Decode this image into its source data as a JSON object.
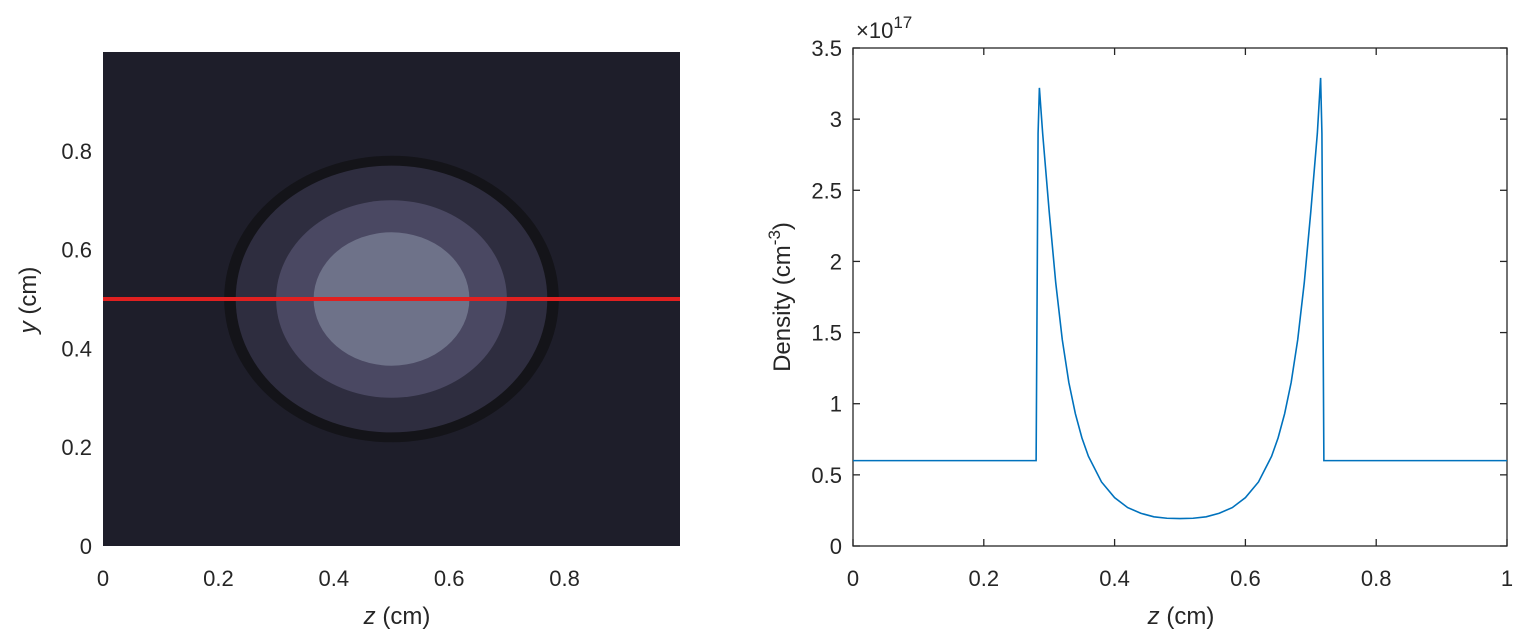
{
  "chart_data": [
    {
      "type": "heatmap",
      "xlabel": {
        "var": "z",
        "unit": " (cm)"
      },
      "ylabel": {
        "var": "y",
        "unit": " (cm)"
      },
      "xlim": [
        0,
        1
      ],
      "ylim": [
        0,
        1
      ],
      "x_ticks": [
        "0",
        "0.2",
        "0.4",
        "0.6",
        "0.8"
      ],
      "y_ticks": [
        "0",
        "0.2",
        "0.4",
        "0.6",
        "0.8"
      ],
      "background_color": "#1e1e2a",
      "regions": [
        {
          "shape": "ellipse",
          "cx": 0.5,
          "cy": 0.5,
          "rx": 0.29,
          "ry": 0.29,
          "color": "#141419"
        },
        {
          "shape": "ellipse",
          "cx": 0.5,
          "cy": 0.5,
          "rx": 0.27,
          "ry": 0.27,
          "color": "#2e2d3f"
        },
        {
          "shape": "ellipse",
          "cx": 0.5,
          "cy": 0.5,
          "rx": 0.2,
          "ry": 0.2,
          "color": "#4a4862"
        },
        {
          "shape": "ellipse",
          "cx": 0.5,
          "cy": 0.5,
          "rx": 0.135,
          "ry": 0.135,
          "color": "#6e7289"
        }
      ],
      "line_cut": {
        "y": 0.5,
        "color": "#e02020"
      }
    },
    {
      "type": "line",
      "xlabel": {
        "var": "z",
        "unit": " (cm)"
      },
      "ylabel": "Density (cm",
      "ylabel_sup": "-3",
      "ylabel_end": ")",
      "xlim": [
        0,
        1
      ],
      "ylim": [
        0,
        3.5
      ],
      "x_ticks": [
        "0",
        "0.2",
        "0.4",
        "0.6",
        "0.8",
        "1"
      ],
      "y_ticks": [
        "0",
        "0.5",
        "1",
        "1.5",
        "2",
        "2.5",
        "3",
        "3.5"
      ],
      "exponent_base": "×10",
      "exponent_power": "17",
      "series_color": "#0072bd",
      "x": [
        0,
        0.28,
        0.283,
        0.285,
        0.29,
        0.3,
        0.31,
        0.32,
        0.33,
        0.34,
        0.35,
        0.36,
        0.38,
        0.4,
        0.42,
        0.44,
        0.46,
        0.48,
        0.5,
        0.52,
        0.54,
        0.56,
        0.58,
        0.6,
        0.62,
        0.64,
        0.65,
        0.66,
        0.67,
        0.68,
        0.69,
        0.7,
        0.71,
        0.715,
        0.717,
        0.72,
        1
      ],
      "y": [
        0.6,
        0.6,
        2.9,
        3.22,
        2.9,
        2.35,
        1.85,
        1.45,
        1.15,
        0.93,
        0.76,
        0.63,
        0.45,
        0.34,
        0.27,
        0.23,
        0.205,
        0.195,
        0.193,
        0.195,
        0.205,
        0.23,
        0.27,
        0.34,
        0.45,
        0.63,
        0.76,
        0.93,
        1.15,
        1.45,
        1.85,
        2.35,
        2.9,
        3.29,
        2.9,
        0.6,
        0.6
      ]
    }
  ]
}
